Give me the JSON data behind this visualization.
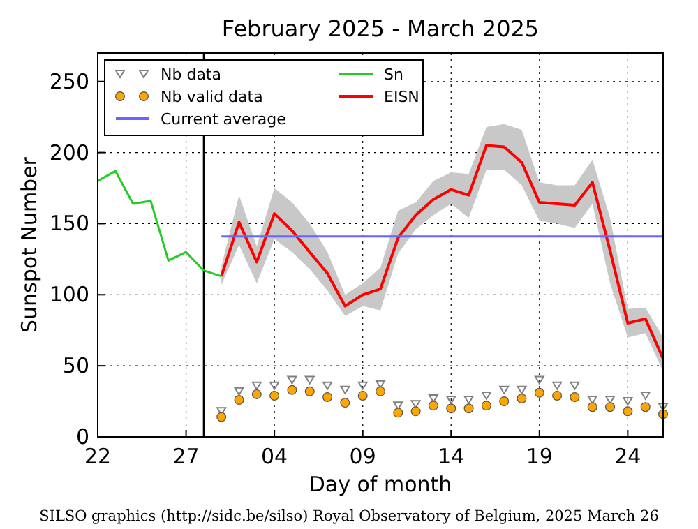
{
  "chart_data": {
    "type": "line",
    "title": "February 2025 - March 2025",
    "xlabel": "Day of month",
    "ylabel": "Sunspot Number",
    "annotations": [
      "SILSO graphics (http://sidc.be/silso) Royal Observatory of Belgium, 2025 March 26"
    ],
    "xlim": [
      "2025-02-22",
      "2025-03-26"
    ],
    "xticks": [
      {
        "value": "2025-02-22",
        "label": "22"
      },
      {
        "value": "2025-02-27",
        "label": "27"
      },
      {
        "value": "2025-03-04",
        "label": "04"
      },
      {
        "value": "2025-03-09",
        "label": "09"
      },
      {
        "value": "2025-03-14",
        "label": "14"
      },
      {
        "value": "2025-03-19",
        "label": "19"
      },
      {
        "value": "2025-03-24",
        "label": "24"
      }
    ],
    "ylim": [
      0,
      270
    ],
    "yticks": [
      0,
      50,
      100,
      150,
      200,
      250
    ],
    "grid": true,
    "legend": "top left",
    "ref_lines": [
      {
        "axis": "x",
        "value": "2025-02-28",
        "color": "#000000",
        "line_style": "solid"
      }
    ],
    "series": [
      {
        "name": "Nb data",
        "type": "scatter",
        "marker": "triangle",
        "color": "#808080",
        "x": [
          "2025-03-01",
          "2025-03-02",
          "2025-03-03",
          "2025-03-04",
          "2025-03-05",
          "2025-03-06",
          "2025-03-07",
          "2025-03-08",
          "2025-03-09",
          "2025-03-10",
          "2025-03-11",
          "2025-03-12",
          "2025-03-13",
          "2025-03-14",
          "2025-03-15",
          "2025-03-16",
          "2025-03-17",
          "2025-03-18",
          "2025-03-19",
          "2025-03-20",
          "2025-03-21",
          "2025-03-22",
          "2025-03-23",
          "2025-03-24",
          "2025-03-25",
          "2025-03-26"
        ],
        "values": [
          18,
          32,
          36,
          36,
          40,
          40,
          36,
          33,
          36,
          37,
          22,
          23,
          27,
          26,
          26,
          29,
          33,
          33,
          40,
          36,
          36,
          26,
          26,
          25,
          29,
          21
        ]
      },
      {
        "name": "Nb valid data",
        "type": "scatter",
        "marker": "circle",
        "color": "#ffa500",
        "x": [
          "2025-03-01",
          "2025-03-02",
          "2025-03-03",
          "2025-03-04",
          "2025-03-05",
          "2025-03-06",
          "2025-03-07",
          "2025-03-08",
          "2025-03-09",
          "2025-03-10",
          "2025-03-11",
          "2025-03-12",
          "2025-03-13",
          "2025-03-14",
          "2025-03-15",
          "2025-03-16",
          "2025-03-17",
          "2025-03-18",
          "2025-03-19",
          "2025-03-20",
          "2025-03-21",
          "2025-03-22",
          "2025-03-23",
          "2025-03-24",
          "2025-03-25",
          "2025-03-26"
        ],
        "values": [
          14,
          26,
          30,
          29,
          33,
          32,
          28,
          24,
          29,
          32,
          17,
          18,
          22,
          20,
          20,
          22,
          25,
          27,
          31,
          29,
          28,
          21,
          21,
          18,
          21,
          16
        ]
      },
      {
        "name": "Current average",
        "type": "line",
        "color": "#6666ff",
        "x": [
          "2025-03-01",
          "2025-03-26"
        ],
        "values": [
          141,
          141
        ]
      },
      {
        "name": "Sn",
        "type": "line",
        "color": "#22cc22",
        "x": [
          "2025-02-22",
          "2025-02-23",
          "2025-02-24",
          "2025-02-25",
          "2025-02-26",
          "2025-02-27",
          "2025-02-28",
          "2025-03-01"
        ],
        "values": [
          180,
          187,
          164,
          166,
          124,
          130,
          117,
          113
        ]
      },
      {
        "name": "EISN",
        "type": "line",
        "color": "#ff0000",
        "x": [
          "2025-03-01",
          "2025-03-02",
          "2025-03-03",
          "2025-03-04",
          "2025-03-05",
          "2025-03-06",
          "2025-03-07",
          "2025-03-08",
          "2025-03-09",
          "2025-03-10",
          "2025-03-11",
          "2025-03-12",
          "2025-03-13",
          "2025-03-14",
          "2025-03-15",
          "2025-03-16",
          "2025-03-17",
          "2025-03-18",
          "2025-03-19",
          "2025-03-20",
          "2025-03-21",
          "2025-03-22",
          "2025-03-23",
          "2025-03-24",
          "2025-03-25",
          "2025-03-26"
        ],
        "values": [
          113,
          151,
          123,
          157,
          145,
          130,
          115,
          92,
          100,
          104,
          140,
          156,
          167,
          174,
          170,
          205,
          204,
          193,
          165,
          164,
          163,
          179,
          131,
          80,
          83,
          55
        ],
        "lower": [
          107,
          135,
          108,
          139,
          130,
          118,
          103,
          85,
          92,
          89,
          129,
          146,
          156,
          164,
          154,
          188,
          188,
          177,
          152,
          150,
          147,
          164,
          108,
          70,
          73,
          46
        ],
        "upper": [
          120,
          170,
          134,
          175,
          165,
          150,
          130,
          100,
          108,
          119,
          159,
          165,
          180,
          186,
          185,
          218,
          220,
          216,
          179,
          177,
          177,
          195,
          154,
          90,
          91,
          70
        ]
      }
    ]
  }
}
